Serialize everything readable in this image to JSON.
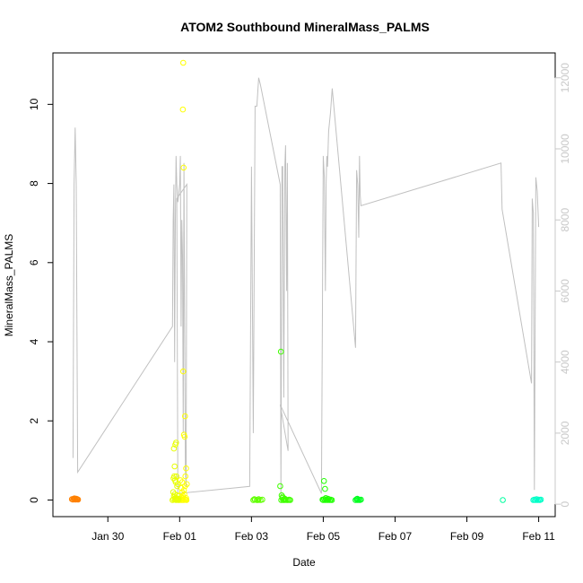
{
  "chart_data": {
    "type": "scatter",
    "title": "ATOM2 Southbound MineralMass_PALMS",
    "xlabel": "Date",
    "ylabel": "MineralMass_PALMS",
    "x_tick_labels": [
      "Jan 30",
      "Feb 01",
      "Feb 03",
      "Feb 05",
      "Feb 07",
      "Feb 09",
      "Feb 11"
    ],
    "x_tick_days": [
      30,
      32,
      34,
      36,
      38,
      40,
      42
    ],
    "xlim_days": [
      28.47,
      42.46
    ],
    "ylim": [
      -0.42,
      11.3
    ],
    "y_ticks": [
      0,
      2,
      4,
      6,
      8,
      10
    ],
    "y2lim": [
      -350,
      12700
    ],
    "y2_ticks": [
      0,
      2000,
      4000,
      6000,
      8000,
      10000,
      12000
    ],
    "grid": false,
    "legend": "none",
    "colors": {
      "altitude_line": "#c0c0c0",
      "right_axis": "#c8c8c8",
      "axis": "#000000"
    },
    "series": [
      {
        "color": "#ff8000",
        "marker": "open-circle",
        "points": [
          [
            29.0,
            0.02
          ],
          [
            29.03,
            0.01
          ],
          [
            29.05,
            0.03
          ],
          [
            29.08,
            0.02
          ],
          [
            29.1,
            0.01
          ],
          [
            29.12,
            0.03
          ],
          [
            29.15,
            0.02
          ],
          [
            29.17,
            0.01
          ],
          [
            29.07,
            0.04
          ],
          [
            29.13,
            0.02
          ]
        ]
      },
      {
        "color": "#ffff00",
        "marker": "open-circle",
        "points": [
          [
            32.1,
            11.05
          ],
          [
            32.09,
            9.87
          ],
          [
            32.11,
            8.4
          ],
          [
            32.1,
            3.25
          ],
          [
            32.15,
            2.12
          ],
          [
            32.12,
            1.65
          ],
          [
            32.14,
            1.6
          ],
          [
            32.18,
            0.8
          ],
          [
            32.02,
            0.5
          ],
          [
            32.05,
            0.3
          ],
          [
            32.07,
            0.2
          ],
          [
            32.09,
            0.1
          ],
          [
            32.1,
            0.05
          ],
          [
            32.13,
            0.15
          ],
          [
            32.16,
            0.6
          ],
          [
            32.2,
            0.4
          ],
          [
            32.0,
            0.0
          ],
          [
            32.03,
            0.02
          ],
          [
            32.06,
            0.0
          ],
          [
            32.08,
            0.01
          ],
          [
            32.11,
            0.0
          ],
          [
            32.14,
            0.02
          ],
          [
            32.17,
            0.01
          ],
          [
            32.19,
            0.0
          ],
          [
            31.98,
            0.1
          ],
          [
            32.12,
            0.25
          ],
          [
            32.15,
            0.35
          ],
          [
            32.07,
            0.45
          ],
          [
            32.18,
            0.05
          ]
        ]
      },
      {
        "color": "#e8ff00",
        "marker": "open-circle",
        "points": [
          [
            31.84,
            1.3
          ],
          [
            31.86,
            0.85
          ],
          [
            31.88,
            1.4
          ],
          [
            31.9,
            1.45
          ],
          [
            31.83,
            0.55
          ],
          [
            31.85,
            0.6
          ],
          [
            31.87,
            0.5
          ],
          [
            31.89,
            0.45
          ],
          [
            31.91,
            0.6
          ],
          [
            31.93,
            0.35
          ],
          [
            31.95,
            0.4
          ],
          [
            31.82,
            0.2
          ],
          [
            31.84,
            0.1
          ],
          [
            31.86,
            0.15
          ],
          [
            31.88,
            0.05
          ],
          [
            31.9,
            0.0
          ],
          [
            31.92,
            0.02
          ],
          [
            31.94,
            0.01
          ],
          [
            31.96,
            0.0
          ],
          [
            31.8,
            0.0
          ],
          [
            31.83,
            0.02
          ],
          [
            31.87,
            0.01
          ],
          [
            31.91,
            0.05
          ],
          [
            31.93,
            0.12
          ],
          [
            31.97,
            0.03
          ]
        ]
      },
      {
        "color": "#60ff00",
        "marker": "open-circle",
        "points": [
          [
            34.05,
            0.0
          ],
          [
            34.1,
            0.01
          ],
          [
            34.15,
            0.0
          ],
          [
            34.2,
            0.02
          ],
          [
            34.25,
            0.0
          ],
          [
            34.3,
            0.01
          ],
          [
            34.08,
            0.02
          ],
          [
            34.18,
            0.0
          ]
        ]
      },
      {
        "color": "#40ff00",
        "marker": "open-circle",
        "points": [
          [
            34.82,
            3.75
          ],
          [
            34.8,
            0.35
          ],
          [
            34.84,
            0.12
          ],
          [
            34.86,
            0.05
          ],
          [
            34.88,
            0.0
          ],
          [
            34.9,
            0.02
          ],
          [
            34.92,
            0.0
          ],
          [
            34.95,
            0.01
          ],
          [
            34.98,
            0.0
          ],
          [
            35.02,
            0.0
          ],
          [
            35.05,
            0.01
          ],
          [
            35.08,
            0.0
          ],
          [
            34.83,
            0.0
          ],
          [
            34.87,
            0.08
          ],
          [
            34.93,
            0.03
          ]
        ]
      },
      {
        "color": "#20ff00",
        "marker": "open-circle",
        "points": [
          [
            36.02,
            0.48
          ],
          [
            36.05,
            0.28
          ],
          [
            36.0,
            0.0
          ],
          [
            36.03,
            0.02
          ],
          [
            36.06,
            0.0
          ],
          [
            36.09,
            0.01
          ],
          [
            36.12,
            0.0
          ],
          [
            36.15,
            0.02
          ],
          [
            36.18,
            0.0
          ],
          [
            36.21,
            0.01
          ],
          [
            36.24,
            0.0
          ],
          [
            35.98,
            0.01
          ],
          [
            36.07,
            0.05
          ],
          [
            36.13,
            0.03
          ]
        ]
      },
      {
        "color": "#00ff20",
        "marker": "open-circle",
        "points": [
          [
            36.9,
            0.0
          ],
          [
            36.93,
            0.02
          ],
          [
            36.96,
            0.0
          ],
          [
            36.99,
            0.01
          ],
          [
            37.02,
            0.0
          ],
          [
            37.05,
            0.01
          ],
          [
            36.95,
            0.03
          ]
        ]
      },
      {
        "color": "#00ffa0",
        "marker": "open-circle",
        "points": [
          [
            41.0,
            0.0
          ]
        ]
      },
      {
        "color": "#00ffc8",
        "marker": "open-circle",
        "points": [
          [
            41.85,
            0.0
          ],
          [
            41.88,
            0.01
          ],
          [
            41.91,
            0.0
          ],
          [
            41.94,
            0.02
          ],
          [
            41.97,
            0.0
          ],
          [
            42.0,
            0.01
          ],
          [
            42.03,
            0.0
          ],
          [
            42.06,
            0.01
          ]
        ]
      }
    ],
    "altitude_path": [
      [
        29.03,
        1300
      ],
      [
        29.06,
        9000
      ],
      [
        29.09,
        10600
      ],
      [
        29.12,
        9000
      ],
      [
        29.16,
        900
      ],
      [
        31.8,
        5000
      ],
      [
        31.82,
        8000
      ],
      [
        31.84,
        9000
      ],
      [
        31.86,
        4000
      ],
      [
        31.88,
        8000
      ],
      [
        31.9,
        9800
      ],
      [
        31.92,
        9000
      ],
      [
        31.95,
        8500
      ],
      [
        32.0,
        9000
      ],
      [
        32.02,
        9800
      ],
      [
        32.04,
        5000
      ],
      [
        32.06,
        8000
      ],
      [
        32.08,
        7000
      ],
      [
        32.1,
        2000
      ],
      [
        32.12,
        9600
      ],
      [
        32.14,
        4800
      ],
      [
        32.16,
        1000
      ],
      [
        32.18,
        500
      ],
      [
        32.2,
        9000
      ],
      [
        31.92,
        8600
      ],
      [
        31.95,
        300
      ],
      [
        33.95,
        500
      ],
      [
        34.0,
        9500
      ],
      [
        34.05,
        2000
      ],
      [
        34.1,
        11200
      ],
      [
        34.15,
        11200
      ],
      [
        34.2,
        12000
      ],
      [
        34.25,
        11800
      ],
      [
        34.8,
        9000
      ],
      [
        34.82,
        200
      ],
      [
        34.85,
        9500
      ],
      [
        34.87,
        9500
      ],
      [
        34.9,
        3000
      ],
      [
        34.93,
        9500
      ],
      [
        34.95,
        10100
      ],
      [
        34.98,
        6000
      ],
      [
        35.0,
        9600
      ],
      [
        35.02,
        1500
      ],
      [
        34.8,
        2800
      ],
      [
        35.95,
        300
      ],
      [
        36.0,
        9800
      ],
      [
        36.03,
        9200
      ],
      [
        36.06,
        6000
      ],
      [
        36.08,
        9000
      ],
      [
        36.1,
        9800
      ],
      [
        36.12,
        9500
      ],
      [
        36.15,
        10500
      ],
      [
        36.2,
        11000
      ],
      [
        36.25,
        11700
      ],
      [
        36.9,
        4400
      ],
      [
        36.93,
        9400
      ],
      [
        36.96,
        9000
      ],
      [
        36.99,
        7500
      ],
      [
        37.01,
        9800
      ],
      [
        37.03,
        8700
      ],
      [
        37.05,
        8400
      ],
      [
        40.95,
        9600
      ],
      [
        40.98,
        8300
      ],
      [
        41.8,
        3400
      ],
      [
        41.82,
        8600
      ],
      [
        41.85,
        8200
      ],
      [
        41.88,
        400
      ],
      [
        41.92,
        9200
      ],
      [
        41.96,
        8800
      ],
      [
        42.0,
        7800
      ]
    ]
  }
}
